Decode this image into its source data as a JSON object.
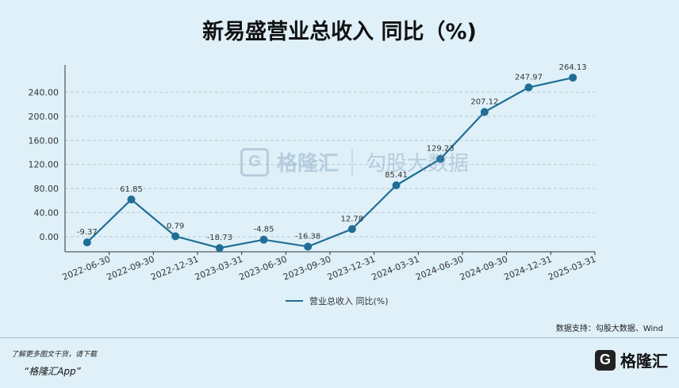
{
  "header": {
    "title": "新易盛营业总收入 同比（%)"
  },
  "watermark": {
    "logo_letter": "G",
    "brand": "格隆汇",
    "product": "勾股大数据"
  },
  "legend": {
    "label": "营业总收入 同比(%)"
  },
  "source": {
    "text": "数据支持：勾股大数据、Wind"
  },
  "footer": {
    "note": "了解更多图文干货，请下载",
    "app": "“格隆汇App”",
    "brand_letter": "G",
    "brand_name": "格隆汇"
  },
  "colors": {
    "line": "#1f6e96",
    "background": "#dff0f8",
    "grid": "#b7cbd6"
  },
  "chart_data": {
    "type": "line",
    "categories": [
      "2022-06-30",
      "2022-09-30",
      "2022-12-31",
      "2023-03-31",
      "2023-06-30",
      "2023-09-30",
      "2023-12-31",
      "2024-03-31",
      "2024-06-30",
      "2024-09-30",
      "2024-12-31",
      "2025-03-31"
    ],
    "series": [
      {
        "name": "营业总收入 同比(%)",
        "values": [
          -9.37,
          61.85,
          0.79,
          -18.73,
          -4.85,
          -16.38,
          12.78,
          85.41,
          129.23,
          207.12,
          247.97,
          264.13
        ]
      }
    ],
    "value_labels": [
      "-9.37",
      "61.85",
      "0.79",
      "-18.73",
      "-4.85",
      "-16.38",
      "12.78",
      "85.41",
      "129.23",
      "207.12",
      "247.97",
      "264.13"
    ],
    "yticks": [
      "0.00",
      "40.00",
      "80.00",
      "120.00",
      "160.00",
      "200.00",
      "240.00"
    ],
    "ylim": [
      -25,
      280
    ],
    "grid": true,
    "legend_position": "bottom"
  }
}
